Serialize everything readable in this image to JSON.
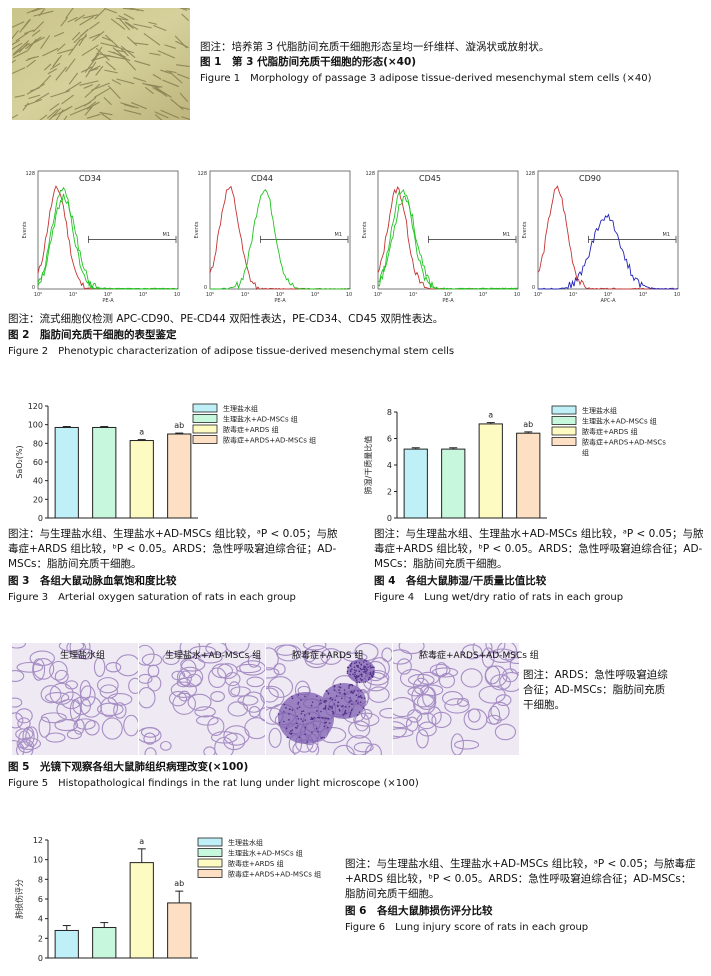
{
  "fig1": {
    "note": "图注：培养第 3 代脂肪间充质干细胞形态呈均一纤维样、漩涡状或放射状。",
    "title_cn": "图 1　第 3 代脂肪间充质干细胞的形态(×40)",
    "title_en": "Figure 1　Morphology of passage 3 adipose tissue-derived mesenchymal stem cells (×40)"
  },
  "fig2": {
    "panels": [
      {
        "label": "CD34",
        "xaxis": "PE-A"
      },
      {
        "label": "CD44",
        "xaxis": "PE-A"
      },
      {
        "label": "CD45",
        "xaxis": "PE-A"
      },
      {
        "label": "CD90",
        "xaxis": "APC-A"
      }
    ],
    "yaxis_label": "Events",
    "gate_label": "M1",
    "yticks": [
      "0",
      "128"
    ],
    "xticks": [
      "10⁰",
      "10¹",
      "10²",
      "10³",
      "10⁴"
    ],
    "note": "图注：流式细胞仪检测 APC-CD90、PE-CD44 双阳性表达，PE-CD34、CD45 双阴性表达。",
    "title_cn": "图 2　脂肪间充质干细胞的表型鉴定",
    "title_en": "Figure 2　Phenotypic characterization of adipose tissue-derived mesenchymal stem cells"
  },
  "groups": [
    "生理盐水组",
    "生理盐水+AD-MSCs 组",
    "脓毒症+ARDS 组",
    "脓毒症+ARDS+AD-MSCs 组"
  ],
  "group_colors": [
    "#bff0f7",
    "#c7f7dc",
    "#fdfbc2",
    "#fde0c4"
  ],
  "fig3": {
    "chart_data": {
      "type": "bar",
      "categories": [
        "生理盐水组",
        "生理盐水+AD-MSCs 组",
        "脓毒症+ARDS 组",
        "脓毒症+ARDS+AD-MSCs 组"
      ],
      "values": [
        97,
        97,
        83,
        90
      ],
      "errors": [
        1,
        1,
        1,
        1
      ],
      "annotations": [
        "",
        "",
        "a",
        "ab"
      ],
      "ylabel": "SaO₂(%)",
      "ylim": [
        0,
        120
      ],
      "yticks": [
        0,
        20,
        40,
        60,
        80,
        100,
        120
      ]
    },
    "note": "图注：与生理盐水组、生理盐水+AD-MSCs 组比较，ᵃP < 0.05；与脓毒症+ARDS 组比较，ᵇP < 0.05。ARDS：急性呼吸窘迫综合征；AD-MSCs：脂肪间充质干细胞。",
    "title_cn": "图 3　各组大鼠动脉血氧饱和度比较",
    "title_en": "Figure 3　Arterial oxygen saturation of rats in each group"
  },
  "fig4": {
    "chart_data": {
      "type": "bar",
      "categories": [
        "生理盐水组",
        "生理盐水+AD-MSCs 组",
        "脓毒症+ARDS 组",
        "脓毒症+ARDS+AD-MSCs 组"
      ],
      "values": [
        5.2,
        5.2,
        7.1,
        6.4
      ],
      "errors": [
        0.1,
        0.1,
        0.1,
        0.1
      ],
      "annotations": [
        "",
        "",
        "a",
        "ab"
      ],
      "ylabel": "肺湿/干质量比值",
      "ylim": [
        0,
        8
      ],
      "yticks": [
        0,
        2,
        4,
        6,
        8
      ]
    },
    "legend": [
      "生理盐水组",
      "生理盐水+AD-MSCs 组",
      "脓毒症+ARDS 组",
      "脓毒症+ARDS+AD-MSCs",
      "组"
    ],
    "note": "图注：与生理盐水组、生理盐水+AD-MSCs 组比较，ᵃP < 0.05；与脓毒症+ARDS 组比较，ᵇP < 0.05。ARDS：急性呼吸窘迫综合征；AD-MSCs：脂肪间充质干细胞。",
    "title_cn": "图 4　各组大鼠肺湿/干质量比值比较",
    "title_en": "Figure 4　Lung wet/dry ratio of rats in each group"
  },
  "fig5": {
    "panels": [
      "生理盐水组",
      "生理盐水+AD-MSCs 组",
      "脓毒症+ARDS 组",
      "脓毒症+ARDS+AD-MSCs 组"
    ],
    "side_note": "图注：ARDS：急性呼吸窘迫综合征；AD-MSCs：脂肪间充质干细胞。",
    "title_cn": "图 5　光镜下观察各组大鼠肺组织病理改变(×100)",
    "title_en": "Figure 5　Histopathological findings in the rat lung under light microscope (×100)"
  },
  "fig6": {
    "chart_data": {
      "type": "bar",
      "categories": [
        "生理盐水组",
        "生理盐水+AD-MSCs 组",
        "脓毒症+ARDS 组",
        "脓毒症+ARDS+AD-MSCs 组"
      ],
      "values": [
        2.8,
        3.1,
        9.7,
        5.6
      ],
      "errors": [
        0.5,
        0.5,
        1.4,
        1.2
      ],
      "annotations": [
        "",
        "",
        "a",
        "ab"
      ],
      "ylabel": "肺损伤评分",
      "ylim": [
        0,
        12
      ],
      "yticks": [
        0,
        2,
        4,
        6,
        8,
        10,
        12
      ]
    },
    "note": "图注：与生理盐水组、生理盐水+AD-MSCs 组比较，ᵃP < 0.05；与脓毒症+ARDS 组比较，ᵇP < 0.05。ARDS：急性呼吸窘迫综合征；AD-MSCs：脂肪间充质干细胞。",
    "title_cn": "图 6　各组大鼠肺损伤评分比较",
    "title_en": "Figure 6　Lung injury score of rats in each group"
  }
}
